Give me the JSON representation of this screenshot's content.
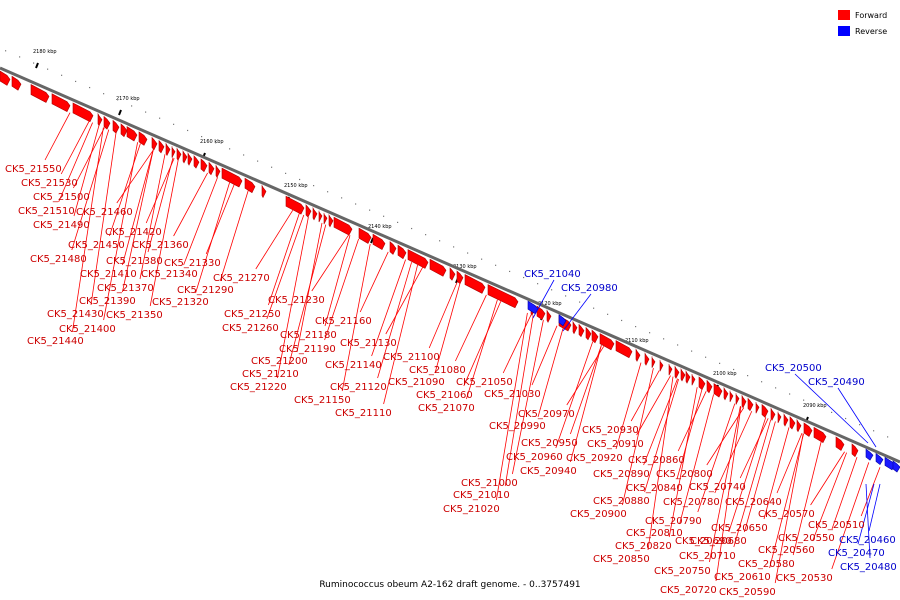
{
  "caption": "Ruminococcus obeum A2-162 draft genome. - 0..3757491",
  "legend": [
    {
      "label": "Forward",
      "color": "#ff0000"
    },
    {
      "label": "Reverse",
      "color": "#0000ff"
    }
  ],
  "axis_ticks": [
    "2180 kbp",
    "2170 kbp",
    "2160 kbp",
    "2150 kbp",
    "2140 kbp",
    "2130 kbp",
    "2120 kbp",
    "2110 kbp",
    "2100 kbp",
    "2090 kbp"
  ],
  "forward_labels": [
    "CK5_21550",
    "CK5_21530",
    "CK5_21500",
    "CK5_21510",
    "CK5_21460",
    "CK5_21490",
    "CK5_21420",
    "CK5_21450",
    "CK5_21360",
    "CK5_21480",
    "CK5_21380",
    "CK5_21330",
    "CK5_21410",
    "CK5_21340",
    "CK5_21270",
    "CK5_21370",
    "CK5_21290",
    "CK5_21390",
    "CK5_21320",
    "CK5_21230",
    "CK5_21430",
    "CK5_21350",
    "CK5_21250",
    "CK5_21400",
    "CK5_21260",
    "CK5_21180",
    "CK5_21160",
    "CK5_21440",
    "CK5_21190",
    "CK5_21130",
    "CK5_21200",
    "CK5_21100",
    "CK5_21080",
    "CK5_21140",
    "CK5_21210",
    "CK5_21090",
    "CK5_21050",
    "CK5_21220",
    "CK5_21120",
    "CK5_21060",
    "CK5_21030",
    "CK5_21150",
    "CK5_21070",
    "CK5_21110",
    "CK5_20970",
    "CK5_20990",
    "CK5_20930",
    "CK5_20950",
    "CK5_20910",
    "CK5_20960",
    "CK5_20920",
    "CK5_20860",
    "CK5_20940",
    "CK5_20890",
    "CK5_20800",
    "CK5_20840",
    "CK5_20740",
    "CK5_21000",
    "CK5_20880",
    "CK5_20780",
    "CK5_20640",
    "CK5_21010",
    "CK5_20900",
    "CK5_20570",
    "CK5_20790",
    "CK5_20650",
    "CK5_20510",
    "CK5_21020",
    "CK5_20810",
    "CK5_20690",
    "CK5_20550",
    "CK5_20820",
    "CK5_20680",
    "CK5_20560",
    "CK5_20710",
    "CK5_20850",
    "CK5_20580",
    "CK5_20750",
    "CK5_20610",
    "CK5_20530",
    "CK5_20720",
    "CK5_20590"
  ],
  "reverse_labels": [
    "CK5_21040",
    "CK5_20980",
    "CK5_20500",
    "CK5_20490",
    "CK5_20460",
    "CK5_20470",
    "CK5_20480"
  ]
}
